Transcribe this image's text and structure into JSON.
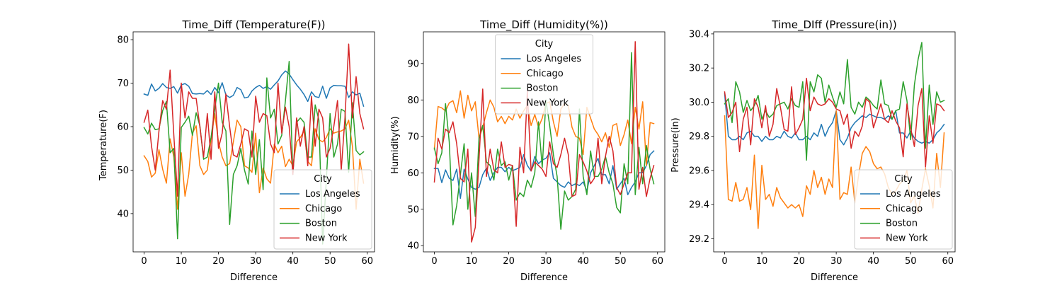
{
  "chart_data": [
    {
      "type": "line",
      "title": "Time_Diff (Temperature(F))",
      "xlabel": "Difference",
      "ylabel": "Temperature(F)",
      "xlim": [
        -2.95,
        61.95
      ],
      "ylim": [
        31.2,
        81.8
      ],
      "xticks": [
        0,
        10,
        20,
        30,
        40,
        50,
        60
      ],
      "yticks": [
        40,
        50,
        60,
        70,
        80
      ],
      "legend_title": "City",
      "legend_position": "lower-right",
      "x": [
        0,
        1,
        2,
        3,
        4,
        5,
        6,
        7,
        8,
        9,
        10,
        11,
        12,
        13,
        14,
        15,
        16,
        17,
        18,
        19,
        20,
        21,
        22,
        23,
        24,
        25,
        26,
        27,
        28,
        29,
        30,
        31,
        32,
        33,
        34,
        35,
        36,
        37,
        38,
        39,
        40,
        41,
        42,
        43,
        44,
        45,
        46,
        47,
        48,
        49,
        50,
        51,
        52,
        53,
        54,
        55,
        56,
        57,
        58,
        59
      ],
      "series": [
        {
          "name": "Los Angeles",
          "color": "#1f77b4",
          "values": [
            67.5,
            67.2,
            69.8,
            68.2,
            68.8,
            69.9,
            69.0,
            68.8,
            69.2,
            67.7,
            69.6,
            69.9,
            69.3,
            67.6,
            67.5,
            67.6,
            67.5,
            68.3,
            67.4,
            69.0,
            67.8,
            70.1,
            67.3,
            66.7,
            67.2,
            69.0,
            68.5,
            66.6,
            66.8,
            68.2,
            69.0,
            69.5,
            68.8,
            69.2,
            68.6,
            69.6,
            70.5,
            71.9,
            72.8,
            72.1,
            70.8,
            69.6,
            68.6,
            67.4,
            65.8,
            68.0,
            66.9,
            66.7,
            69.3,
            66.5,
            68.9,
            69.5,
            69.4,
            69.4,
            69.3,
            66.7,
            68.0,
            67.3,
            67.7,
            64.7
          ]
        },
        {
          "name": "Chicago",
          "color": "#ff7f0e",
          "values": [
            53.3,
            52.0,
            48.4,
            49.3,
            54.7,
            50.2,
            47.0,
            57.2,
            53.0,
            41.0,
            54.0,
            44.0,
            49.0,
            58.5,
            60.2,
            51.0,
            49.0,
            50.0,
            57.0,
            63.0,
            56.5,
            53.0,
            51.0,
            51.5,
            56.5,
            61.5,
            60.0,
            51.0,
            50.5,
            49.5,
            58.5,
            44.8,
            50.5,
            48.0,
            47.0,
            56.0,
            54.0,
            55.5,
            50.8,
            52.5,
            51.0,
            56.5,
            57.5,
            59.0,
            52.0,
            51.0,
            59.5,
            57.0,
            56.5,
            57.5,
            59.5,
            58.5,
            58.8,
            59.0,
            59.5,
            61.5,
            55.5,
            41.0,
            52.5,
            47.0
          ]
        },
        {
          "name": "Boston",
          "color": "#2ca02c",
          "values": [
            59.8,
            58.3,
            60.8,
            59.3,
            59.5,
            63.7,
            65.8,
            54.0,
            55.0,
            34.2,
            59.8,
            61.0,
            62.4,
            58.0,
            63.2,
            60.2,
            52.5,
            53.0,
            57.5,
            64.0,
            70.0,
            61.0,
            59.0,
            37.5,
            49.0,
            51.0,
            55.0,
            50.0,
            46.8,
            59.0,
            49.0,
            57.0,
            45.5,
            71.2,
            62.0,
            64.0,
            56.0,
            58.0,
            66.0,
            75.0,
            49.0,
            61.0,
            62.0,
            61.0,
            53.0,
            53.0,
            65.0,
            61.5,
            33.0,
            48.0,
            63.0,
            53.0,
            56.0,
            64.0,
            63.5,
            49.5,
            65.5,
            54.5,
            53.5,
            54.2
          ]
        },
        {
          "name": "New York",
          "color": "#d62728",
          "values": [
            61.0,
            63.8,
            55.5,
            50.0,
            59.0,
            66.0,
            64.0,
            73.0,
            58.0,
            44.0,
            70.0,
            62.0,
            68.0,
            66.5,
            66.5,
            60.0,
            53.0,
            63.0,
            52.5,
            68.0,
            55.0,
            58.5,
            67.5,
            60.0,
            53.5,
            53.0,
            56.0,
            59.5,
            59.0,
            53.0,
            67.0,
            61.0,
            63.0,
            62.5,
            56.0,
            54.0,
            70.0,
            58.5,
            64.5,
            60.0,
            49.0,
            62.0,
            55.5,
            60.0,
            51.0,
            67.0,
            55.5,
            64.0,
            62.0,
            53.0,
            55.0,
            60.0,
            66.0,
            50.0,
            62.0,
            79.0,
            62.0,
            71.5,
            63.0,
            59.5
          ]
        }
      ]
    },
    {
      "type": "line",
      "title": "Time_Diff (Humidity(%))",
      "xlabel": "Difference",
      "ylabel": "Humidity(%)",
      "xlim": [
        -2.95,
        61.95
      ],
      "ylim": [
        38.3,
        98.7
      ],
      "xticks": [
        0,
        10,
        20,
        30,
        40,
        50,
        60
      ],
      "yticks": [
        40,
        50,
        60,
        70,
        80,
        90
      ],
      "legend_title": "City",
      "legend_position": "upper-center",
      "x": [
        0,
        1,
        2,
        3,
        4,
        5,
        6,
        7,
        8,
        9,
        10,
        11,
        12,
        13,
        14,
        15,
        16,
        17,
        18,
        19,
        20,
        21,
        22,
        23,
        24,
        25,
        26,
        27,
        28,
        29,
        30,
        31,
        32,
        33,
        34,
        35,
        36,
        37,
        38,
        39,
        40,
        41,
        42,
        43,
        44,
        45,
        46,
        47,
        48,
        49,
        50,
        51,
        52,
        53,
        54,
        55,
        56,
        57,
        58,
        59
      ],
      "series": [
        {
          "name": "Los Angeles",
          "color": "#1f77b4",
          "values": [
            61.2,
            61.2,
            57.3,
            60.8,
            58.5,
            57.9,
            61.0,
            53.0,
            61.0,
            58.3,
            56.0,
            55.5,
            56.0,
            59.5,
            61.3,
            57.9,
            60.0,
            61.5,
            61.5,
            60.3,
            61.5,
            60.6,
            61.0,
            61.5,
            65.0,
            62.0,
            60.5,
            64.5,
            62.5,
            63.5,
            64.0,
            65.5,
            58.5,
            57.5,
            56.5,
            56.0,
            57.5,
            56.5,
            57.0,
            56.5,
            57.5,
            55.0,
            60.0,
            62.0,
            64.0,
            59.5,
            59.5,
            57.0,
            62.0,
            55.5,
            57.0,
            58.5,
            54.0,
            56.0,
            57.5,
            60.0,
            60.0,
            62.0,
            65.0,
            66.0
          ]
        },
        {
          "name": "Chicago",
          "color": "#ff7f0e",
          "values": [
            66.5,
            78.2,
            77.8,
            77.0,
            79.2,
            79.8,
            76.5,
            82.5,
            75.0,
            81.3,
            77.0,
            79.5,
            69.5,
            72.5,
            76.5,
            80.0,
            78.0,
            74.0,
            75.5,
            73.5,
            75.5,
            74.5,
            77.5,
            75.0,
            77.0,
            78.5,
            73.0,
            76.0,
            72.5,
            75.0,
            79.0,
            79.5,
            74.0,
            70.0,
            77.5,
            79.0,
            78.5,
            72.5,
            70.0,
            69.5,
            65.0,
            78.0,
            75.0,
            72.0,
            70.5,
            68.5,
            71.0,
            67.0,
            73.0,
            73.5,
            67.5,
            70.5,
            74.5,
            68.0,
            78.0,
            72.0,
            79.5,
            62.0,
            73.8,
            73.5
          ]
        },
        {
          "name": "Boston",
          "color": "#2ca02c",
          "values": [
            66.8,
            62.5,
            65.5,
            79.0,
            68.5,
            45.7,
            51.0,
            59.5,
            68.0,
            50.0,
            60.0,
            48.0,
            69.5,
            73.0,
            63.0,
            62.0,
            58.0,
            66.5,
            62.0,
            63.0,
            58.0,
            62.0,
            52.5,
            54.5,
            53.5,
            58.0,
            56.0,
            60.0,
            74.0,
            61.5,
            80.0,
            73.0,
            65.0,
            59.0,
            44.5,
            55.0,
            52.5,
            53.5,
            55.5,
            77.5,
            59.0,
            54.0,
            66.0,
            59.0,
            59.0,
            61.0,
            64.5,
            60.0,
            57.0,
            50.5,
            49.0,
            62.5,
            57.0,
            93.0,
            54.0,
            67.0,
            57.0,
            67.5,
            61.0,
            57.0
          ]
        },
        {
          "name": "New York",
          "color": "#d62728",
          "values": [
            57.5,
            69.5,
            66.5,
            72.0,
            71.0,
            74.0,
            68.0,
            58.5,
            57.5,
            66.5,
            41.0,
            45.0,
            63.5,
            83.0,
            59.0,
            66.5,
            60.8,
            60.0,
            68.5,
            61.5,
            62.3,
            62.0,
            45.3,
            67.0,
            60.0,
            82.5,
            60.5,
            63.0,
            62.0,
            61.0,
            59.0,
            68.5,
            62.5,
            61.5,
            65.0,
            69.5,
            65.0,
            53.5,
            54.0,
            65.0,
            63.0,
            60.5,
            57.0,
            58.5,
            69.5,
            57.0,
            64.5,
            70.0,
            66.0,
            56.0,
            54.0,
            57.0,
            60.0,
            60.0,
            96.0,
            55.5,
            61.5,
            53.5,
            58.5,
            62.0
          ]
        }
      ]
    },
    {
      "type": "line",
      "title": "Time_DIff (Pressure(in))",
      "xlabel": "Difference",
      "ylabel": "Pressure(in)",
      "xlim": [
        -2.95,
        61.95
      ],
      "ylim": [
        29.123,
        30.412
      ],
      "xticks": [
        0,
        10,
        20,
        30,
        40,
        50,
        60
      ],
      "yticks": [
        29.2,
        29.4,
        29.6,
        29.8,
        30.0,
        30.2,
        30.4
      ],
      "legend_title": "City",
      "legend_position": "lower-right",
      "x": [
        0,
        1,
        2,
        3,
        4,
        5,
        6,
        7,
        8,
        9,
        10,
        11,
        12,
        13,
        14,
        15,
        16,
        17,
        18,
        19,
        20,
        21,
        22,
        23,
        24,
        25,
        26,
        27,
        28,
        29,
        30,
        31,
        32,
        33,
        34,
        35,
        36,
        37,
        38,
        39,
        40,
        41,
        42,
        43,
        44,
        45,
        46,
        47,
        48,
        49,
        50,
        51,
        52,
        53,
        54,
        55,
        56,
        57,
        58,
        59
      ],
      "series": [
        {
          "name": "Los Angeles",
          "color": "#1f77b4",
          "values": [
            30.05,
            29.8,
            29.78,
            29.78,
            29.8,
            29.78,
            29.82,
            29.83,
            29.8,
            29.8,
            29.77,
            29.8,
            29.78,
            29.78,
            29.8,
            29.79,
            29.83,
            29.8,
            29.79,
            29.82,
            29.78,
            29.78,
            29.8,
            29.78,
            29.82,
            29.8,
            29.87,
            29.8,
            29.85,
            29.88,
            29.95,
            29.78,
            29.75,
            29.79,
            29.85,
            29.88,
            29.9,
            29.92,
            29.91,
            29.93,
            29.92,
            29.91,
            29.91,
            29.9,
            29.92,
            29.9,
            29.95,
            29.82,
            29.82,
            29.79,
            29.83,
            29.79,
            29.77,
            29.76,
            29.77,
            29.76,
            29.78,
            29.82,
            29.84,
            29.87
          ]
        },
        {
          "name": "Chicago",
          "color": "#ff7f0e",
          "values": [
            29.92,
            29.43,
            29.42,
            29.53,
            29.42,
            29.43,
            29.5,
            29.37,
            29.69,
            29.26,
            29.63,
            29.43,
            29.46,
            29.39,
            29.5,
            29.44,
            29.41,
            29.38,
            29.4,
            29.38,
            29.4,
            29.33,
            29.51,
            29.46,
            29.6,
            29.5,
            29.56,
            29.46,
            29.55,
            29.5,
            29.95,
            29.43,
            29.47,
            29.46,
            29.62,
            29.41,
            29.57,
            29.7,
            29.74,
            29.71,
            29.64,
            29.61,
            29.62,
            29.58,
            29.5,
            29.46,
            29.48,
            29.52,
            29.54,
            29.6,
            29.41,
            29.45,
            29.35,
            29.49,
            29.61,
            29.51,
            29.38,
            29.7,
            29.5,
            29.82
          ]
        },
        {
          "name": "Boston",
          "color": "#2ca02c",
          "values": [
            29.99,
            30.02,
            29.88,
            30.12,
            30.06,
            29.94,
            30.01,
            29.95,
            29.98,
            30.04,
            29.9,
            29.95,
            29.91,
            29.93,
            29.98,
            29.99,
            30.0,
            29.96,
            30.02,
            29.98,
            29.97,
            30.12,
            29.66,
            30.12,
            30.06,
            30.16,
            30.14,
            30.0,
            30.1,
            30.03,
            29.97,
            30.06,
            29.99,
            30.25,
            29.97,
            29.93,
            30.0,
            29.97,
            30.03,
            30.01,
            29.98,
            29.96,
            30.13,
            29.99,
            29.98,
            29.9,
            29.95,
            29.96,
            30.12,
            30.01,
            29.78,
            30.1,
            30.25,
            30.35,
            29.73,
            30.1,
            29.87,
            30.06,
            30.0,
            30.01
          ]
        },
        {
          "name": "New York",
          "color": "#d62728",
          "values": [
            30.06,
            29.91,
            29.94,
            30.0,
            29.71,
            29.9,
            29.97,
            29.75,
            30.02,
            29.97,
            29.85,
            29.98,
            29.8,
            29.87,
            30.08,
            29.97,
            29.84,
            29.83,
            30.09,
            29.81,
            29.85,
            29.9,
            30.14,
            29.95,
            30.03,
            29.99,
            29.98,
            29.99,
            30.02,
            30.0,
            29.96,
            29.95,
            29.87,
            29.93,
            29.73,
            29.83,
            29.8,
            29.86,
            30.02,
            30.0,
            29.85,
            29.92,
            29.99,
            29.9,
            29.88,
            29.95,
            29.89,
            29.85,
            29.68,
            29.99,
            29.85,
            29.74,
            29.98,
            30.08,
            29.62,
            29.92,
            29.76,
            29.99,
            29.98,
            29.95
          ]
        }
      ]
    }
  ]
}
